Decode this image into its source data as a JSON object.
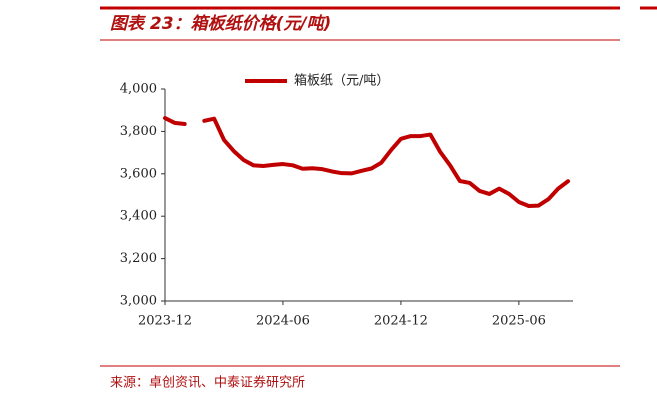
{
  "chart_data": {
    "type": "line",
    "title": "图表 23：箱板纸价格(元/吨)",
    "source": "来源：卓创资讯、中泰证券研究所",
    "categories": [
      "2023-12",
      null,
      null,
      null,
      null,
      null,
      null,
      null,
      null,
      null,
      null,
      null,
      "2024-06",
      null,
      null,
      null,
      null,
      null,
      null,
      null,
      null,
      null,
      null,
      null,
      "2024-12",
      null,
      null,
      null,
      null,
      null,
      null,
      null,
      null,
      null,
      null,
      null,
      "2025-06",
      null,
      null,
      null,
      null,
      null
    ],
    "series": [
      {
        "name": "箱板纸（元/吨）",
        "color": "#c00000",
        "values": [
          3863,
          3840,
          3835,
          null,
          3850,
          3860,
          3760,
          3707,
          3665,
          3640,
          3637,
          3642,
          3646,
          3640,
          3624,
          3626,
          3622,
          3611,
          3603,
          3602,
          3614,
          3625,
          3652,
          3712,
          3765,
          3778,
          3778,
          3785,
          3703,
          3640,
          3566,
          3557,
          3519,
          3505,
          3530,
          3505,
          3467,
          3448,
          3450,
          3480,
          3530,
          3565
        ]
      }
    ],
    "ylim": [
      3000,
      4000
    ],
    "yticks": [
      {
        "value": 3000,
        "label": "3,000"
      },
      {
        "value": 3200,
        "label": "3,200"
      },
      {
        "value": 3400,
        "label": "3,400"
      },
      {
        "value": 3600,
        "label": "3,600"
      },
      {
        "value": 3800,
        "label": "3,800"
      },
      {
        "value": 4000,
        "label": "4,000"
      }
    ],
    "legend": "top"
  }
}
